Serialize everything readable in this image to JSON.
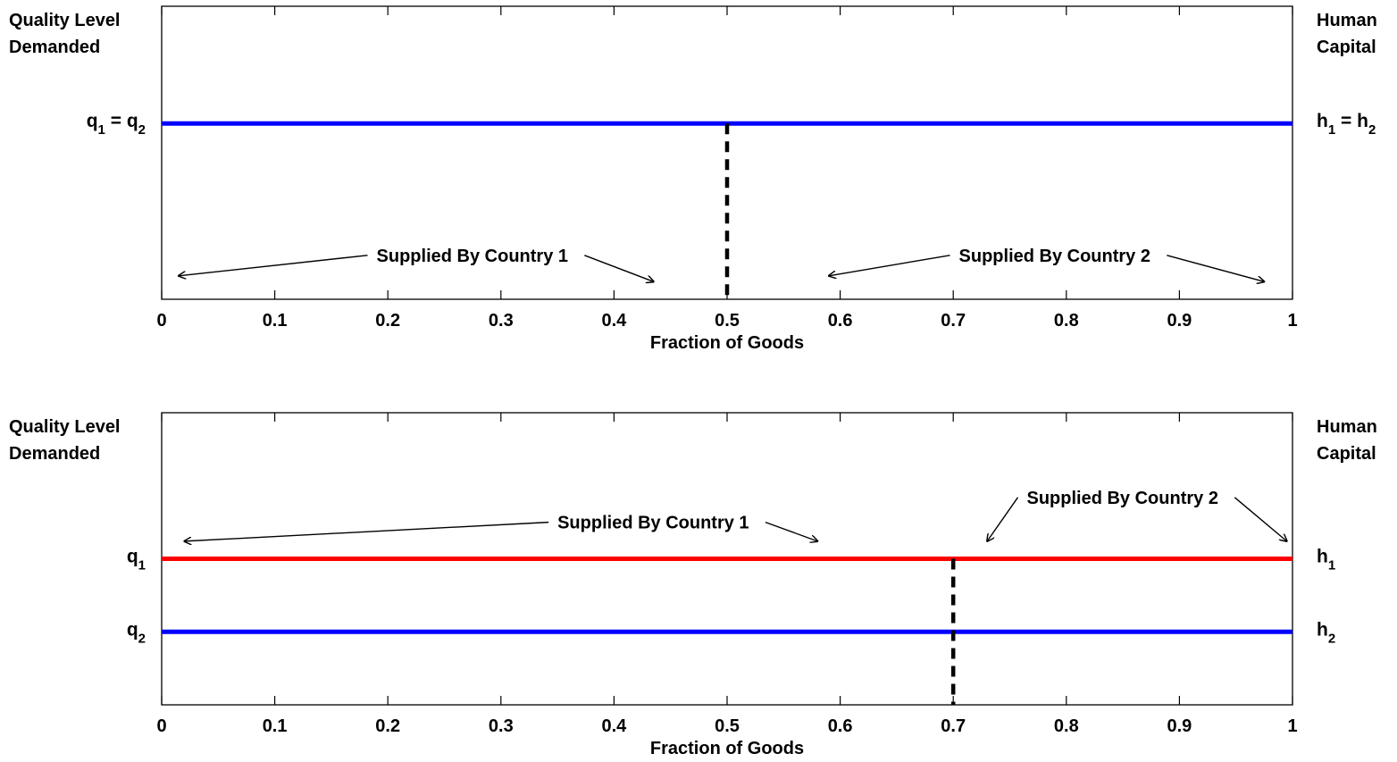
{
  "chart_data": [
    {
      "type": "line",
      "xlabel": "Fraction of Goods",
      "left_axis_label": [
        "Quality Level",
        "Demanded"
      ],
      "right_axis_label": [
        "Human",
        "Capital"
      ],
      "xlim": [
        0,
        1
      ],
      "xticks": [
        "0",
        "0.1",
        "0.2",
        "0.3",
        "0.4",
        "0.5",
        "0.6",
        "0.7",
        "0.8",
        "0.9",
        "1"
      ],
      "grid": false,
      "legend": "none",
      "divider_x": 0.5,
      "series": [
        {
          "left_label": {
            "base": "q",
            "sub": "1",
            "mid": " = q",
            "sub2": "2"
          },
          "right_label": {
            "base": "h",
            "sub": "1",
            "mid": " = h",
            "sub2": "2"
          },
          "level": 0.6,
          "color": "#0000ff",
          "x": [
            0,
            1
          ]
        }
      ],
      "annotations": [
        {
          "text": "Supplied By Country 1",
          "text_x": 0.19,
          "text_level": 0.15,
          "arrows": [
            [
              0.015,
              0.08
            ],
            [
              0.435,
              0.06
            ]
          ]
        },
        {
          "text": "Supplied By Country 2",
          "text_x": 0.705,
          "text_level": 0.15,
          "arrows": [
            [
              0.59,
              0.08
            ],
            [
              0.975,
              0.06
            ]
          ]
        }
      ]
    },
    {
      "type": "line",
      "xlabel": "Fraction of Goods",
      "left_axis_label": [
        "Quality Level",
        "Demanded"
      ],
      "right_axis_label": [
        "Human",
        "Capital"
      ],
      "xlim": [
        0,
        1
      ],
      "xticks": [
        "0",
        "0.1",
        "0.2",
        "0.3",
        "0.4",
        "0.5",
        "0.6",
        "0.7",
        "0.8",
        "0.9",
        "1"
      ],
      "grid": false,
      "legend": "none",
      "divider_x": 0.7,
      "series": [
        {
          "left_label": {
            "base": "q",
            "sub": "1"
          },
          "right_label": {
            "base": "h",
            "sub": "1"
          },
          "level": 0.5,
          "color": "#ff0000",
          "x": [
            0,
            1
          ]
        },
        {
          "left_label": {
            "base": "q",
            "sub": "2"
          },
          "right_label": {
            "base": "h",
            "sub": "2"
          },
          "level": 0.25,
          "color": "#0000ff",
          "x": [
            0,
            1
          ]
        }
      ],
      "annotations": [
        {
          "text": "Supplied By Country 1",
          "text_x": 0.35,
          "text_level": 0.625,
          "arrows": [
            [
              0.02,
              0.56
            ],
            [
              0.58,
              0.56
            ]
          ]
        },
        {
          "text": "Supplied By Country 2",
          "text_x": 0.765,
          "text_level": 0.71,
          "arrows": [
            [
              0.73,
              0.56
            ],
            [
              0.995,
              0.56
            ]
          ]
        }
      ]
    }
  ]
}
